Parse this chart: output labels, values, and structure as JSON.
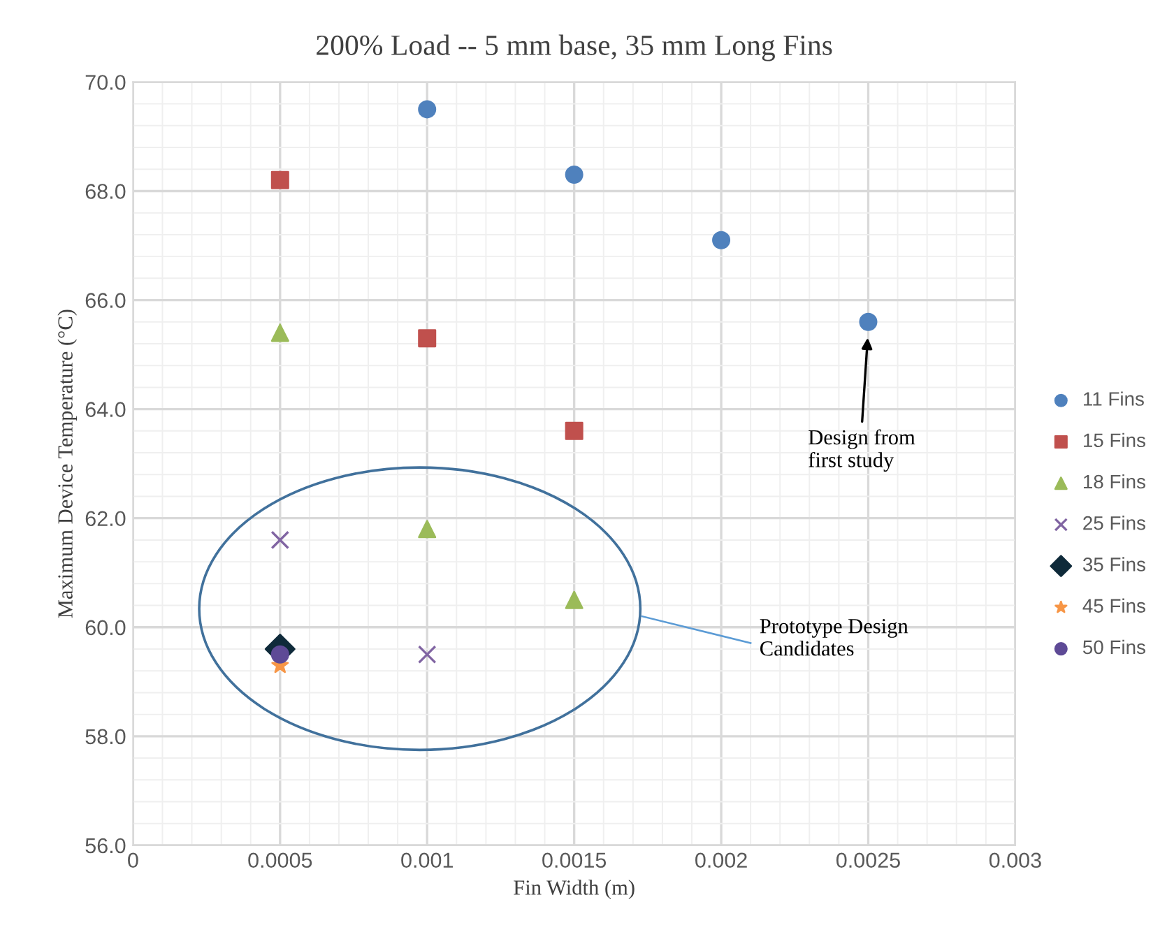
{
  "chart_data": {
    "type": "scatter",
    "title": "200% Load -- 5 mm base, 35 mm Long Fins",
    "xlabel": "Fin Width (m)",
    "ylabel": "Maximum Device Temperature (°C)",
    "xlim": [
      0,
      0.003
    ],
    "xticks": [
      0,
      {
        "value": 0.0005,
        "label": "0.0005"
      },
      {
        "value": 0.001,
        "label": "0.001"
      },
      {
        "value": 0.0015,
        "label": "0.0015"
      },
      {
        "value": 0.002,
        "label": "0.002"
      },
      {
        "value": 0.0025,
        "label": "0.0025"
      },
      {
        "value": 0.003,
        "label": "0.003"
      }
    ],
    "ylim": [
      56,
      70
    ],
    "yticks": [
      {
        "value": 56,
        "label": "56.0"
      },
      {
        "value": 58,
        "label": "58.0"
      },
      {
        "value": 60,
        "label": "60.0"
      },
      {
        "value": 62,
        "label": "62.0"
      },
      {
        "value": 64,
        "label": "64.0"
      },
      {
        "value": 66,
        "label": "66.0"
      },
      {
        "value": 68,
        "label": "68.0"
      },
      {
        "value": 70,
        "label": "70.0"
      }
    ],
    "grid": true,
    "legend": "right",
    "series": [
      {
        "name": "11 Fins",
        "color": "#4f81bd",
        "marker": "circle",
        "x": [
          0.001,
          0.0015,
          0.002,
          0.0025
        ],
        "values": [
          69.5,
          68.3,
          67.1,
          65.6
        ]
      },
      {
        "name": "15 Fins",
        "color": "#c0504d",
        "marker": "square",
        "x": [
          0.0005,
          0.001,
          0.0015
        ],
        "values": [
          68.2,
          65.3,
          63.6
        ]
      },
      {
        "name": "18 Fins",
        "color": "#9bbb59",
        "marker": "triangle",
        "x": [
          0.0005,
          0.001,
          0.0015
        ],
        "values": [
          65.4,
          61.8,
          60.5
        ]
      },
      {
        "name": "25 Fins",
        "color": "#8064a2",
        "marker": "cross",
        "x": [
          0.0005,
          0.001
        ],
        "values": [
          61.6,
          59.5
        ]
      },
      {
        "name": "35 Fins",
        "color": "#0f2a3a",
        "marker": "diamond",
        "x": [
          0.0005
        ],
        "values": [
          59.6
        ]
      },
      {
        "name": "45 Fins",
        "color": "#f79646",
        "marker": "star",
        "x": [
          0.0005
        ],
        "values": [
          59.3
        ]
      },
      {
        "name": "50 Fins",
        "color": "#5e4a96",
        "marker": "circle",
        "x": [
          0.0005
        ],
        "values": [
          59.5
        ]
      }
    ],
    "annotations": [
      "Design from\nfirst study",
      "Prototype Design\nCandidates"
    ]
  }
}
